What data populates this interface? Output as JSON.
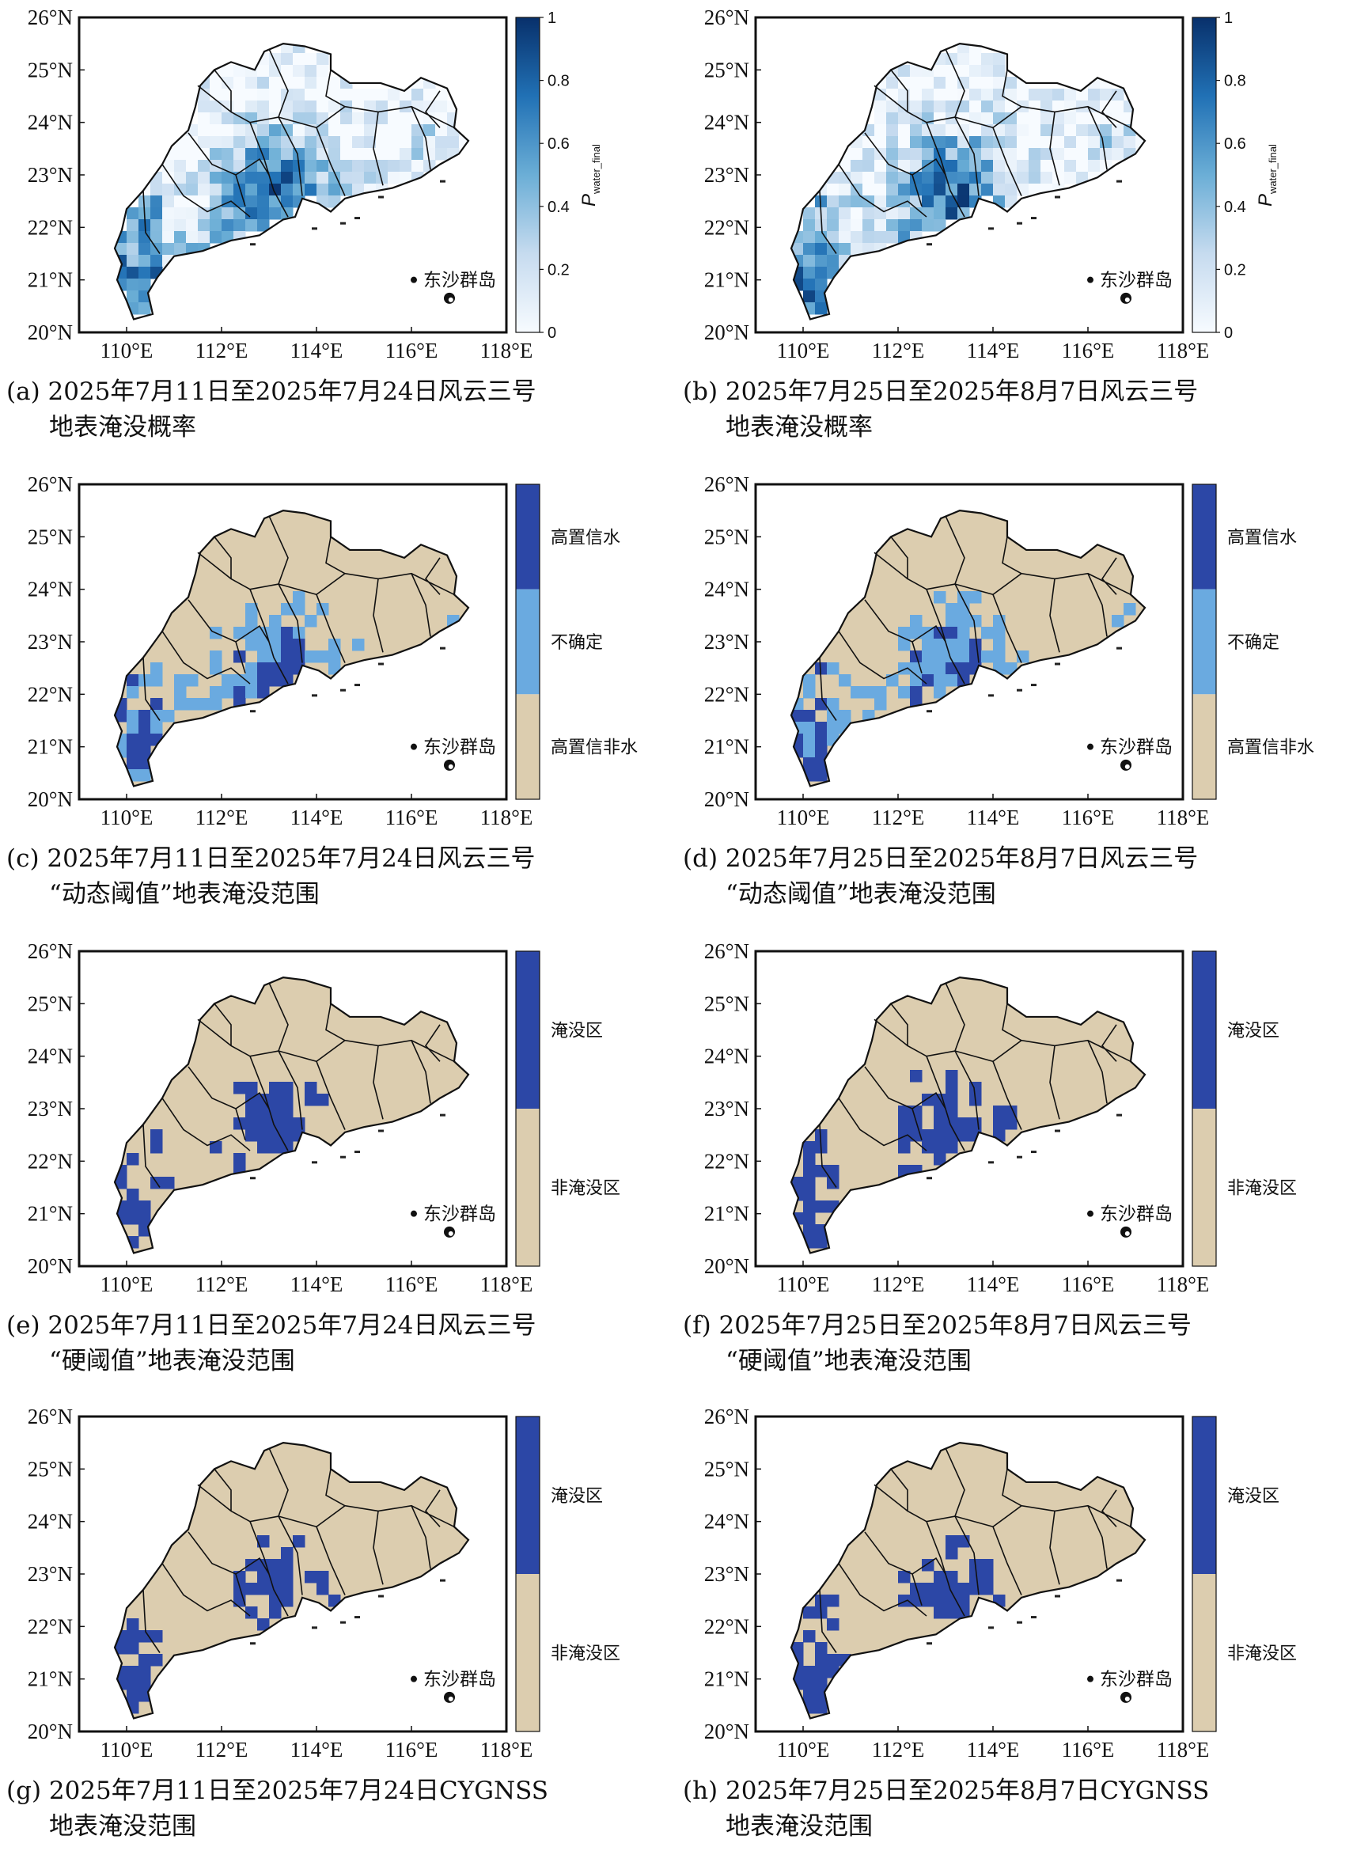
{
  "colors": {
    "land": "#dccdaf",
    "uncertain": "#6aaae0",
    "water": "#2c47a6",
    "outline": "#111111",
    "prob_low": "#f7fbff",
    "prob_high": "#08306b"
  },
  "axes": {
    "lat_labels": [
      "26°N",
      "25°N",
      "24°N",
      "23°N",
      "22°N",
      "21°N",
      "20°N"
    ],
    "lon_labels": [
      "110°E",
      "112°E",
      "114°E",
      "116°E",
      "118°E"
    ]
  },
  "island_label": "东沙群岛",
  "panels": [
    {
      "id": "a",
      "kind": "prob",
      "caption_line1": "(a) 2025年7月11日至2025年7月24日风云三号",
      "caption_line2": "地表淹没概率",
      "colorbar": {
        "ticks": [
          "1",
          "0.8",
          "0.6",
          "0.4",
          "0.2",
          "0"
        ],
        "label": "P",
        "label_sub": "water_final"
      }
    },
    {
      "id": "b",
      "kind": "prob",
      "caption_line1": "(b) 2025年7月25日至2025年8月7日风云三号",
      "caption_line2": "地表淹没概率",
      "colorbar": {
        "ticks": [
          "1",
          "0.8",
          "0.6",
          "0.4",
          "0.2",
          "0"
        ],
        "label": "P",
        "label_sub": "water_final"
      }
    },
    {
      "id": "c",
      "kind": "tri",
      "caption_line1": "(c) 2025年7月11日至2025年7月24日风云三号",
      "caption_line2": "“动态阈值”地表淹没范围",
      "colorbar": {
        "categories": [
          "高置信水",
          "不确定",
          "高置信非水"
        ]
      }
    },
    {
      "id": "d",
      "kind": "tri",
      "caption_line1": "(d) 2025年7月25日至2025年8月7日风云三号",
      "caption_line2": "“动态阈值”地表淹没范围",
      "colorbar": {
        "categories": [
          "高置信水",
          "不确定",
          "高置信非水"
        ]
      }
    },
    {
      "id": "e",
      "kind": "bin",
      "caption_line1": "(e) 2025年7月11日至2025年7月24日风云三号",
      "caption_line2": "“硬阈值”地表淹没范围",
      "colorbar": {
        "categories": [
          "淹没区",
          "非淹没区"
        ]
      }
    },
    {
      "id": "f",
      "kind": "bin",
      "caption_line1": "(f) 2025年7月25日至2025年8月7日风云三号",
      "caption_line2": "“硬阈值”地表淹没范围",
      "colorbar": {
        "categories": [
          "淹没区",
          "非淹没区"
        ]
      }
    },
    {
      "id": "g",
      "kind": "bin",
      "caption_line1": "(g) 2025年7月11日至2025年7月24日CYGNSS",
      "caption_line2": "地表淹没范围",
      "colorbar": {
        "categories": [
          "淹没区",
          "非淹没区"
        ]
      }
    },
    {
      "id": "h",
      "kind": "bin",
      "caption_line1": "(h) 2025年7月25日至2025年8月7日CYGNSS",
      "caption_line2": "地表淹没范围",
      "colorbar": {
        "categories": [
          "淹没区",
          "非淹没区"
        ]
      }
    }
  ]
}
